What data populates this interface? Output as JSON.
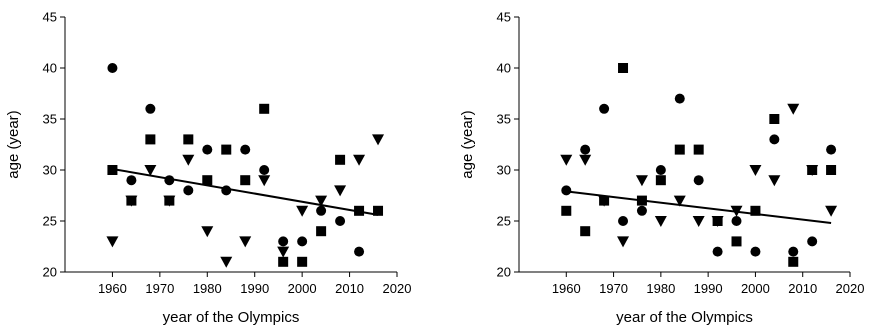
{
  "chart_data": [
    {
      "type": "scatter",
      "xlabel": "year of the Olympics",
      "ylabel": "age (year)",
      "xlim": [
        1950,
        2020
      ],
      "ylim": [
        20,
        45
      ],
      "xticks": [
        1960,
        1970,
        1980,
        1990,
        2000,
        2010,
        2020
      ],
      "yticks": [
        20,
        25,
        30,
        35,
        40,
        45
      ],
      "grid": false,
      "marker_color": "#000000",
      "series": [
        {
          "marker": "circle",
          "points": [
            [
              1960,
              40
            ],
            [
              1964,
              29
            ],
            [
              1968,
              36
            ],
            [
              1972,
              29
            ],
            [
              1976,
              28
            ],
            [
              1980,
              32
            ],
            [
              1984,
              28
            ],
            [
              1988,
              32
            ],
            [
              1992,
              30
            ],
            [
              1996,
              23
            ],
            [
              2000,
              23
            ],
            [
              2004,
              26
            ],
            [
              2008,
              25
            ],
            [
              2012,
              22
            ]
          ]
        },
        {
          "marker": "square",
          "points": [
            [
              1960,
              30
            ],
            [
              1964,
              27
            ],
            [
              1968,
              33
            ],
            [
              1972,
              27
            ],
            [
              1976,
              33
            ],
            [
              1980,
              29
            ],
            [
              1984,
              32
            ],
            [
              1988,
              29
            ],
            [
              1992,
              36
            ],
            [
              1996,
              21
            ],
            [
              2000,
              21
            ],
            [
              2004,
              24
            ],
            [
              2008,
              31
            ],
            [
              2012,
              26
            ],
            [
              2016,
              26
            ]
          ]
        },
        {
          "marker": "triangle-down",
          "points": [
            [
              1960,
              23
            ],
            [
              1964,
              27
            ],
            [
              1968,
              30
            ],
            [
              1972,
              27
            ],
            [
              1976,
              31
            ],
            [
              1980,
              24
            ],
            [
              1984,
              21
            ],
            [
              1988,
              23
            ],
            [
              1992,
              29
            ],
            [
              1996,
              22
            ],
            [
              2000,
              26
            ],
            [
              2004,
              27
            ],
            [
              2008,
              28
            ],
            [
              2012,
              31
            ],
            [
              2016,
              33
            ]
          ]
        }
      ],
      "trendline": {
        "x": [
          1960,
          2016
        ],
        "y": [
          30.1,
          25.6
        ]
      }
    },
    {
      "type": "scatter",
      "xlabel": "year of the Olympics",
      "ylabel": "age (year)",
      "xlim": [
        1950,
        2020
      ],
      "ylim": [
        20,
        45
      ],
      "xticks": [
        1960,
        1970,
        1980,
        1990,
        2000,
        2010,
        2020
      ],
      "yticks": [
        20,
        25,
        30,
        35,
        40,
        45
      ],
      "grid": false,
      "marker_color": "#000000",
      "series": [
        {
          "marker": "circle",
          "points": [
            [
              1960,
              28
            ],
            [
              1964,
              32
            ],
            [
              1968,
              36
            ],
            [
              1972,
              25
            ],
            [
              1976,
              26
            ],
            [
              1980,
              30
            ],
            [
              1984,
              37
            ],
            [
              1988,
              29
            ],
            [
              1992,
              22
            ],
            [
              1996,
              25
            ],
            [
              2000,
              22
            ],
            [
              2004,
              33
            ],
            [
              2008,
              22
            ],
            [
              2012,
              23
            ],
            [
              2016,
              32
            ]
          ]
        },
        {
          "marker": "square",
          "points": [
            [
              1960,
              26
            ],
            [
              1964,
              24
            ],
            [
              1968,
              27
            ],
            [
              1972,
              40
            ],
            [
              1976,
              27
            ],
            [
              1980,
              29
            ],
            [
              1984,
              32
            ],
            [
              1988,
              32
            ],
            [
              1992,
              25
            ],
            [
              1996,
              23
            ],
            [
              2000,
              26
            ],
            [
              2004,
              35
            ],
            [
              2008,
              21
            ],
            [
              2012,
              30
            ],
            [
              2016,
              30
            ]
          ]
        },
        {
          "marker": "triangle-down",
          "points": [
            [
              1960,
              31
            ],
            [
              1964,
              31
            ],
            [
              1968,
              27
            ],
            [
              1972,
              23
            ],
            [
              1976,
              29
            ],
            [
              1980,
              25
            ],
            [
              1984,
              27
            ],
            [
              1988,
              25
            ],
            [
              1992,
              25
            ],
            [
              1996,
              26
            ],
            [
              2000,
              30
            ],
            [
              2004,
              29
            ],
            [
              2008,
              36
            ],
            [
              2012,
              30
            ],
            [
              2016,
              26
            ]
          ]
        }
      ],
      "trendline": {
        "x": [
          1960,
          2016
        ],
        "y": [
          27.9,
          24.8
        ]
      }
    }
  ]
}
